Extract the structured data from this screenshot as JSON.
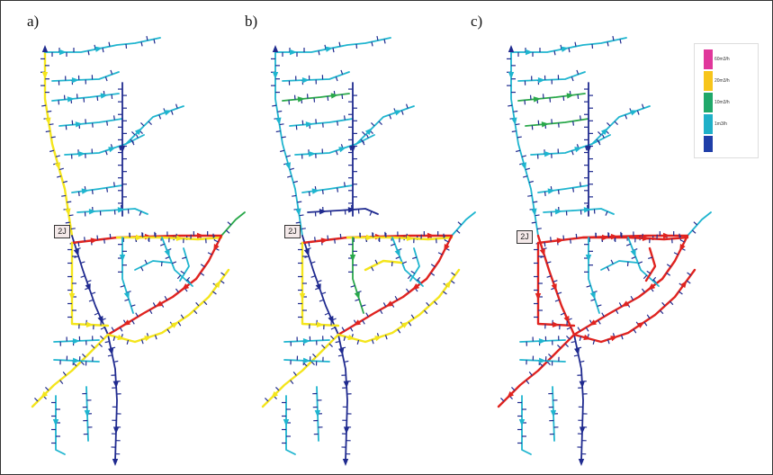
{
  "panels": [
    {
      "label": "a)",
      "node_label": "2J"
    },
    {
      "label": "b)",
      "node_label": "2J"
    },
    {
      "label": "c)",
      "node_label": "2J"
    }
  ],
  "legend": {
    "items": [
      {
        "label": "60m3/h",
        "color": "#e0379b"
      },
      {
        "label": "20m3/h",
        "color": "#f7c51b"
      },
      {
        "label": "10m3/h",
        "color": "#20a86a"
      },
      {
        "label": "1m3/h",
        "color": "#1fb0c8"
      },
      {
        "label": "",
        "color": "#1f3ea8"
      }
    ]
  },
  "colors": {
    "red": "#e0231f",
    "yellow": "#f4e51c",
    "green": "#29a84a",
    "cyan": "#1fb5cf",
    "navy": "#1f2a8f"
  }
}
